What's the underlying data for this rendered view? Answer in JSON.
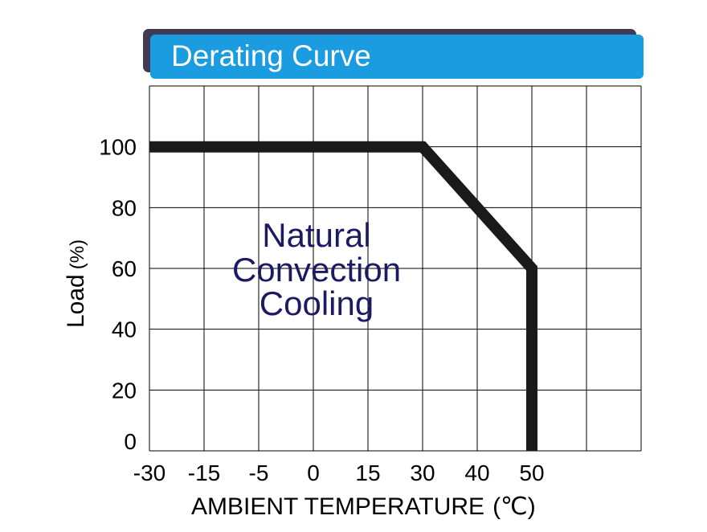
{
  "chart_data": {
    "type": "line",
    "title": "Derating Curve",
    "xlabel": "AMBIENT TEMPERATURE",
    "xunit": "(℃)",
    "ylabel": "Load",
    "yunit": "(%)",
    "x_tick_labels": [
      "-30",
      "-15",
      "-5",
      "0",
      "15",
      "30",
      "40",
      "50"
    ],
    "y_tick_labels": [
      "0",
      "20",
      "40",
      "60",
      "80",
      "100"
    ],
    "ylim": [
      0,
      120
    ],
    "grid": true,
    "series": [
      {
        "points": [
          {
            "x": -30,
            "y": 100
          },
          {
            "x": 30,
            "y": 100
          },
          {
            "x": 50,
            "y": 60
          },
          {
            "x": 50,
            "y": 0
          }
        ]
      }
    ],
    "annotation": [
      "Natural",
      "Convection",
      "Cooling"
    ],
    "colors": {
      "title_bar": "#1b9be0",
      "title_shadow": "#3f3c52",
      "curve": "#1a1a1a",
      "annotation": "#1c1a63",
      "grid": "#000000"
    }
  }
}
